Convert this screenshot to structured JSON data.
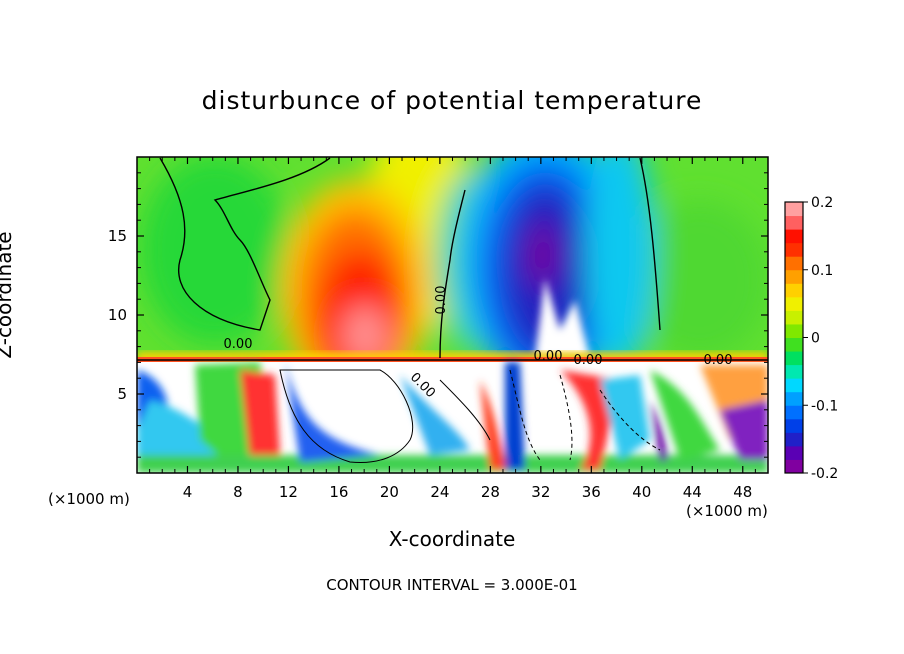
{
  "chart_data": {
    "type": "heatmap",
    "title": "disturbunce of potential temperature",
    "xlabel": "X-coordinate",
    "ylabel": "Z-coordinate",
    "x_unit": "(×1000 m)",
    "y_unit": "(×1000 m)",
    "xlim": [
      0,
      50
    ],
    "ylim": [
      0,
      20
    ],
    "x_ticks": [
      4,
      8,
      12,
      16,
      20,
      24,
      28,
      32,
      36,
      40,
      44,
      48
    ],
    "y_ticks": [
      5,
      10,
      15
    ],
    "colorbar": {
      "range": [
        -0.2,
        0.2
      ],
      "ticks": [
        "0.2",
        "0.1",
        "0",
        "-0.1",
        "-0.2"
      ],
      "colors": [
        "#8000a0",
        "#5a00b4",
        "#2020c8",
        "#0040e8",
        "#0070ff",
        "#00a0ff",
        "#00d8ff",
        "#00e8b0",
        "#00e060",
        "#40e020",
        "#80e800",
        "#c8f000",
        "#f0f000",
        "#ffd000",
        "#ffa000",
        "#ff7000",
        "#ff3000",
        "#ff1000",
        "#ff6060",
        "#ffa0a0"
      ]
    },
    "contour_labels": [
      "0.00",
      "0.00",
      "0.00",
      "0.00",
      "0.00",
      "0.00"
    ],
    "contour_interval": "CONTOUR INTERVAL = 3.000E-01",
    "features": [
      {
        "x": 18,
        "z": 11,
        "value": 0.18
      },
      {
        "x": 32,
        "z": 14,
        "value": -0.2
      },
      {
        "x": 8,
        "z": 14,
        "value": 0.0
      },
      {
        "x": 45,
        "z": 12,
        "value": 0.02
      }
    ]
  }
}
